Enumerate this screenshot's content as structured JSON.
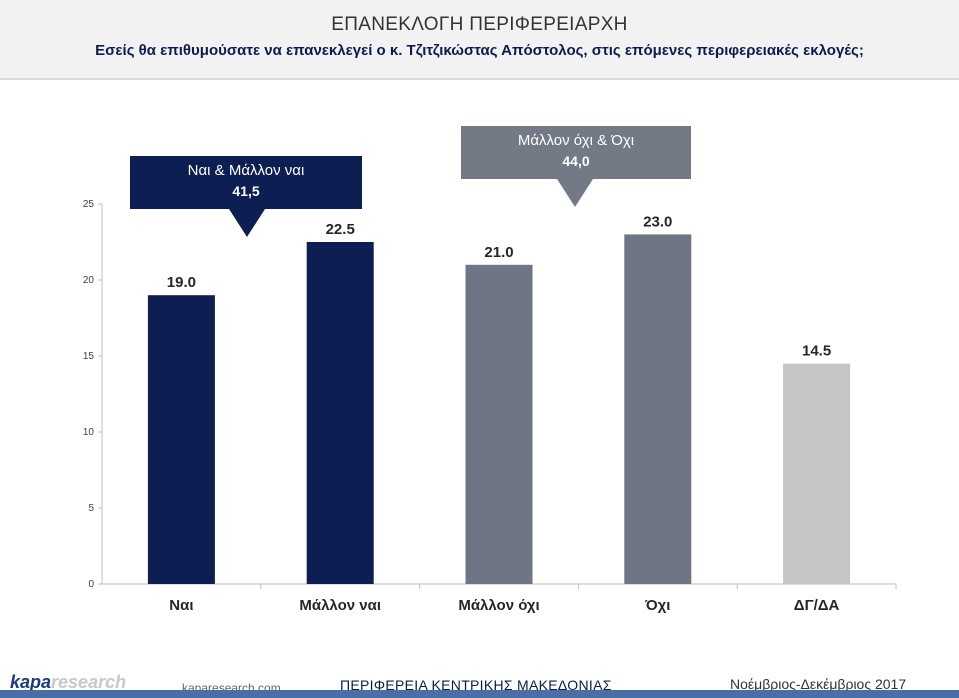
{
  "header": {
    "title": "ΕΠΑΝΕΚΛΟΓΗ ΠΕΡΙΦΕΡΕΙΑΡΧΗ",
    "subtitle": "Εσείς θα επιθυμούσατε να επανεκλεγεί ο κ. Τζιτζικώστας Απόστολος, στις επόμενες περιφερειακές εκλογές;"
  },
  "callouts": {
    "yes": {
      "label": "Ναι & Μάλλον ναι",
      "value": "41,5"
    },
    "no": {
      "label": "Μάλλον όχι & Όχι",
      "value": "44,0"
    }
  },
  "chart_data": {
    "type": "bar",
    "title": "ΕΠΑΝΕΚΛΟΓΗ ΠΕΡΙΦΕΡΕΙΑΡΧΗ",
    "categories": [
      "Ναι",
      "Μάλλον ναι",
      "Μάλλον όχι",
      "Όχι",
      "ΔΓ/ΔΑ"
    ],
    "values": [
      19.0,
      22.5,
      21.0,
      23.0,
      14.5
    ],
    "value_labels": [
      "19.0",
      "22.5",
      "21.0",
      "23.0",
      "14.5"
    ],
    "colors": [
      "#0c1e52",
      "#0c1e52",
      "#6f7584",
      "#6f7584",
      "#c4c5c7"
    ],
    "yticks": [
      0,
      5,
      10,
      15,
      20,
      25
    ],
    "ylim": [
      0,
      25
    ],
    "xlabel": "",
    "ylabel": ""
  },
  "footer": {
    "logo_main": "kapa",
    "logo_accent": "research",
    "site": "kaparesearch.com",
    "region": "ΠΕΡΙΦΕΡΕΙΑ ΚΕΝΤΡΙΚΗΣ ΜΑΚΕΔΟΝΙΑΣ",
    "period": "Νοέμβριος-Δεκέμβριος 2017"
  }
}
